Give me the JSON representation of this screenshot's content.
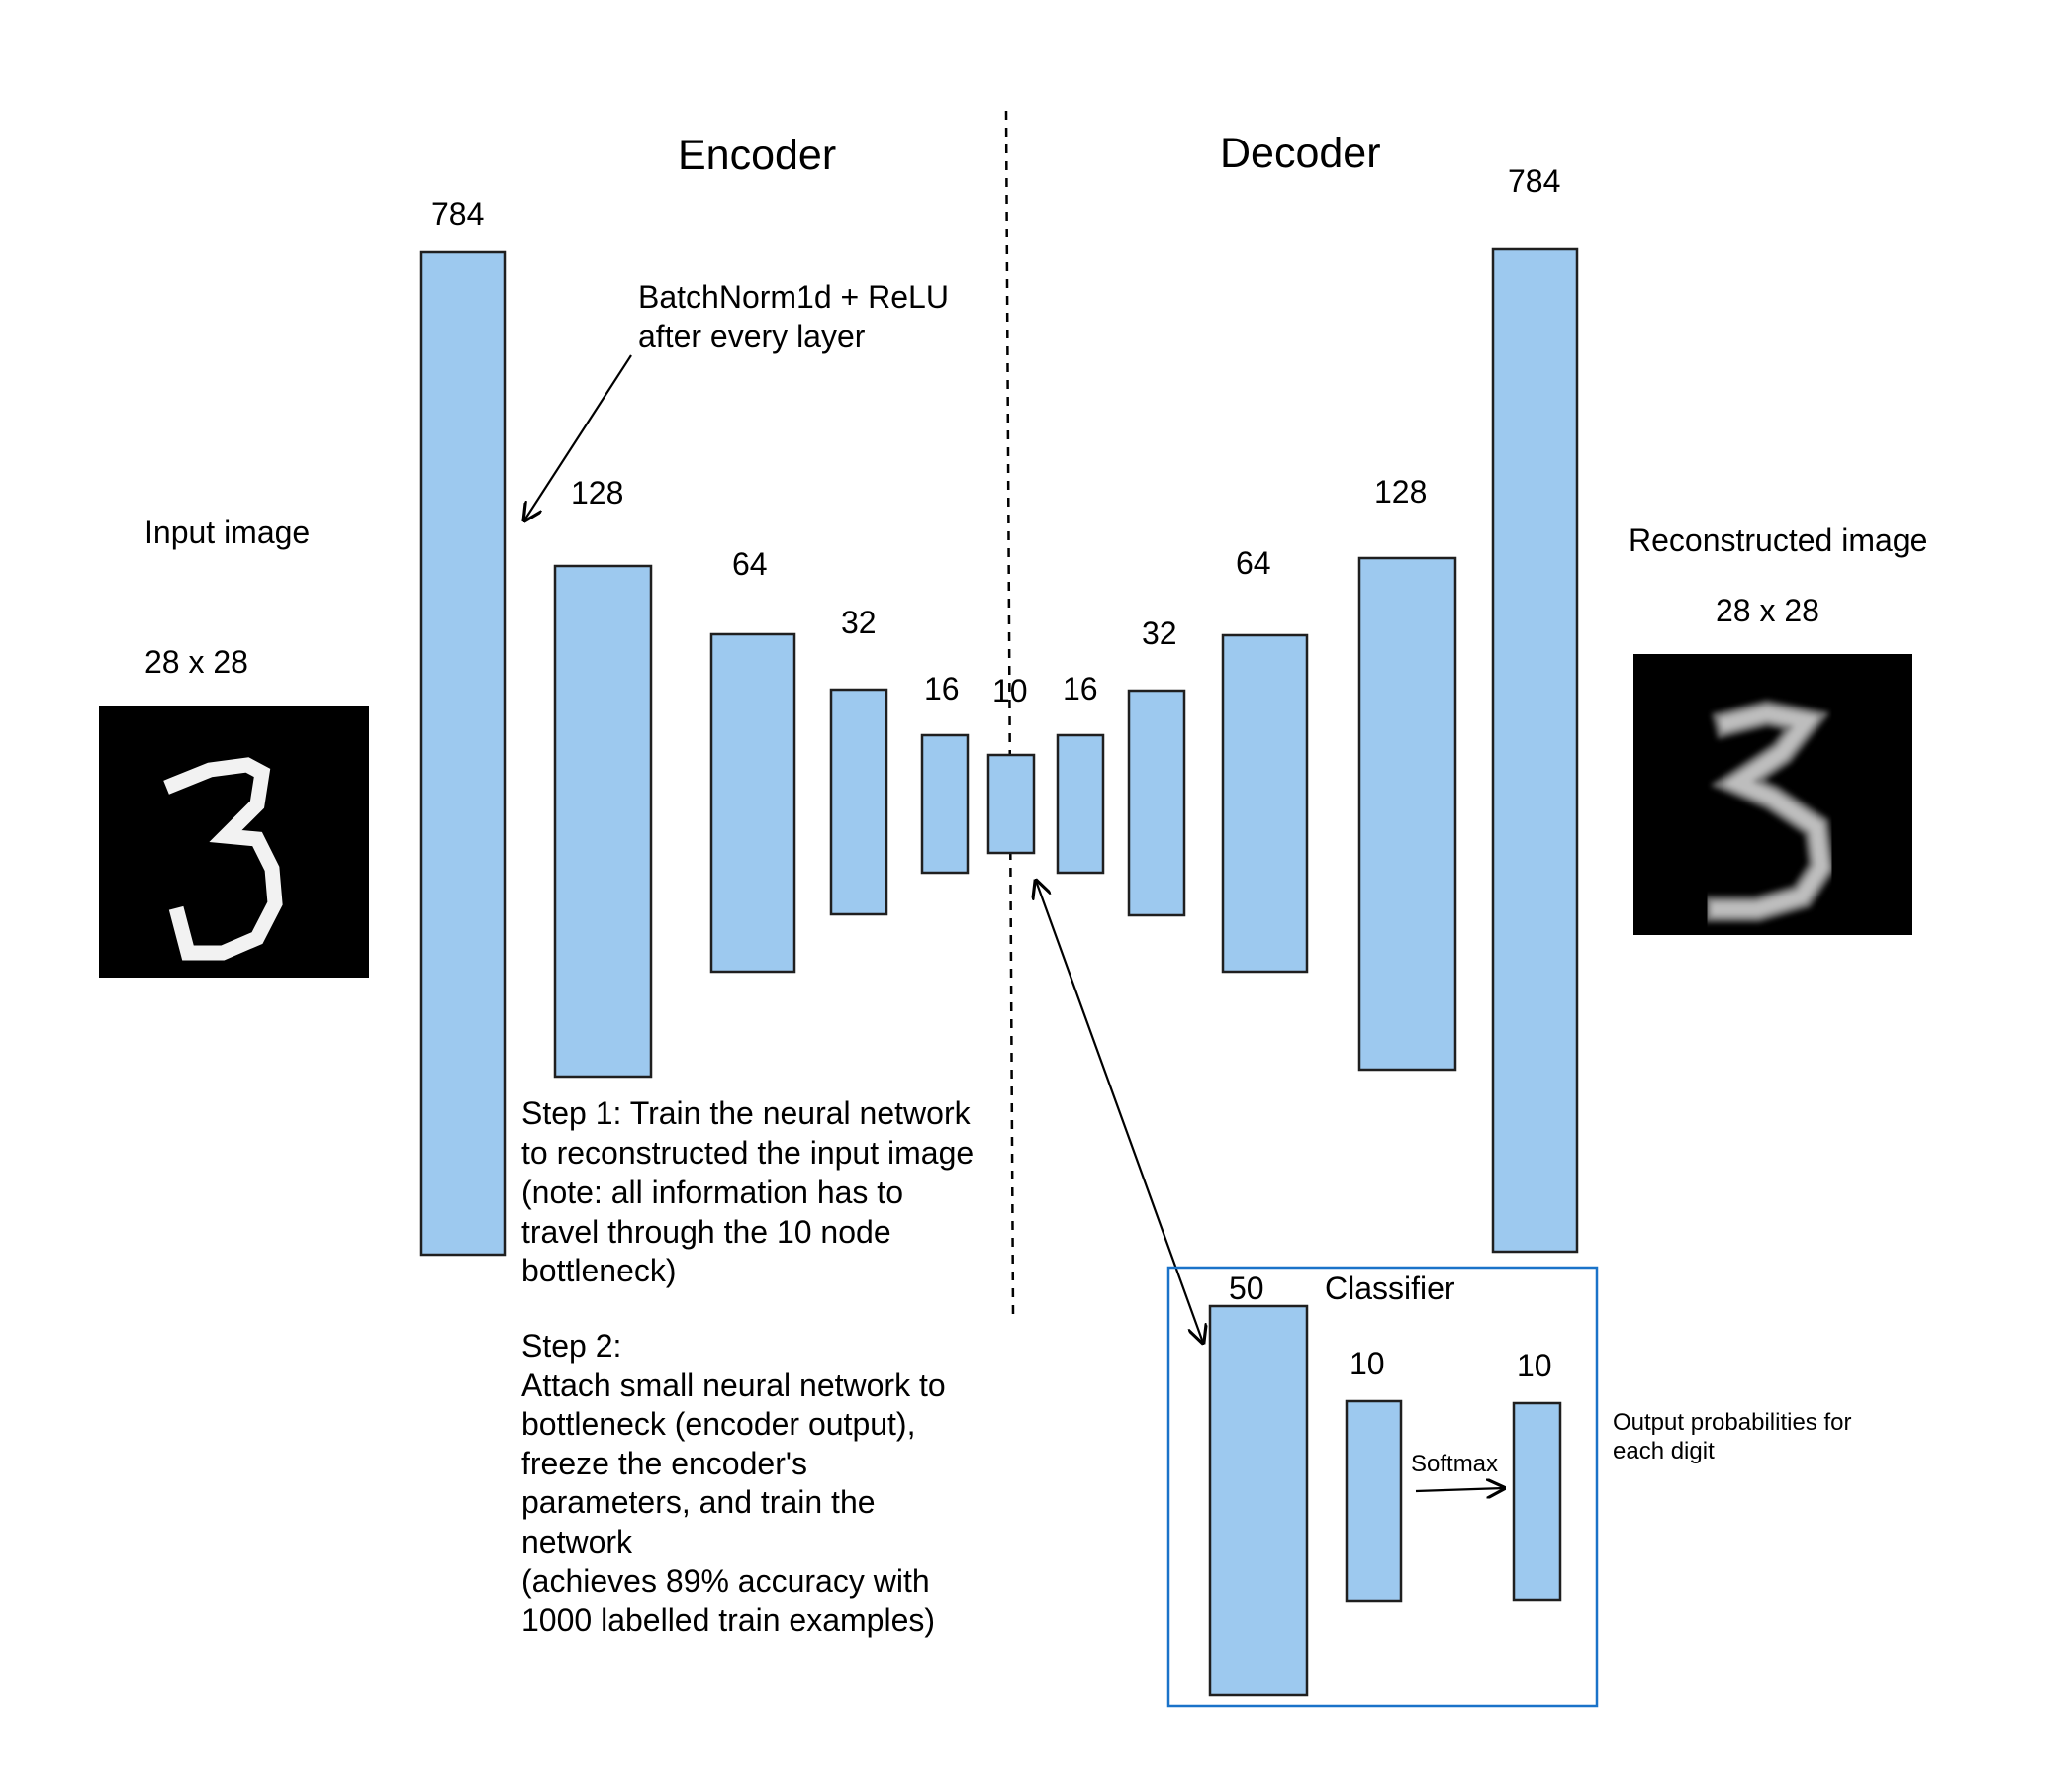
{
  "headings": {
    "encoder": "Encoder",
    "decoder": "Decoder",
    "classifier": "Classifier"
  },
  "input": {
    "label": "Input image",
    "size": "28 x 28"
  },
  "output": {
    "label": "Reconstructed image",
    "size": "28 x 28"
  },
  "encoder_layers": [
    "784",
    "128",
    "64",
    "32",
    "16",
    "10"
  ],
  "decoder_layers": [
    "16",
    "32",
    "64",
    "128",
    "784"
  ],
  "classifier_layers": [
    "50",
    "10",
    "10"
  ],
  "annotations": {
    "batchnorm": [
      "BatchNorm1d + ReLU",
      "after every layer"
    ],
    "softmax": "Softmax",
    "output_probs": [
      "Output probabilities for",
      "each digit"
    ],
    "step1": [
      "Step 1: Train the neural network",
      "to reconstructed the input image",
      "(note: all information has to",
      "travel through the 10 node",
      "bottleneck)"
    ],
    "step2": [
      "Step 2:",
      "Attach small neural network to",
      "bottleneck (encoder output),",
      "freeze the encoder's",
      "parameters, and train the",
      "network",
      "(achieves 89% accuracy with",
      "1000 labelled train examples)"
    ]
  },
  "colors": {
    "layer_fill": "#9dc9ef",
    "classifier_border": "#1a73c9"
  }
}
